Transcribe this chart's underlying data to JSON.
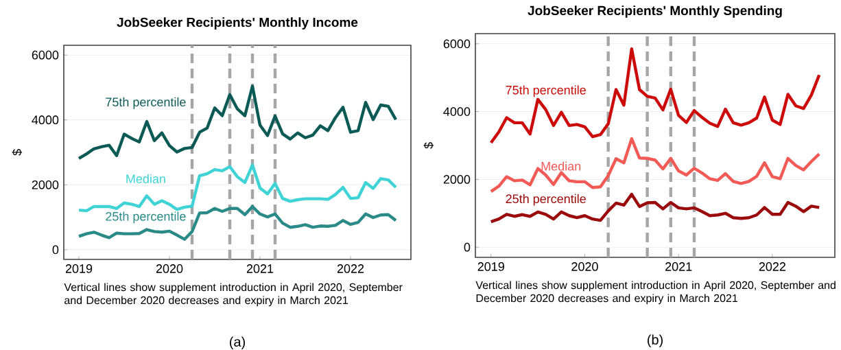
{
  "chart_data": [
    {
      "type": "line",
      "title": "JobSeeker Recipients' Monthly Income",
      "ylabel": "$",
      "x": [
        "2019-01",
        "2019-02",
        "2019-03",
        "2019-04",
        "2019-05",
        "2019-06",
        "2019-07",
        "2019-08",
        "2019-09",
        "2019-10",
        "2019-11",
        "2019-12",
        "2020-01",
        "2020-02",
        "2020-03",
        "2020-04",
        "2020-05",
        "2020-06",
        "2020-07",
        "2020-08",
        "2020-09",
        "2020-10",
        "2020-11",
        "2020-12",
        "2021-01",
        "2021-02",
        "2021-03",
        "2021-04",
        "2021-05",
        "2021-06",
        "2021-07",
        "2021-08",
        "2021-09",
        "2021-10",
        "2021-11",
        "2021-12",
        "2022-01",
        "2022-02",
        "2022-03",
        "2022-04",
        "2022-05",
        "2022-06",
        "2022-07"
      ],
      "series": [
        {
          "name": "75th percentile",
          "color": "#0b5a56",
          "values": [
            2810,
            2950,
            3110,
            3170,
            3220,
            2900,
            3560,
            3430,
            3320,
            3950,
            3360,
            3600,
            3210,
            3010,
            3120,
            3150,
            3620,
            3750,
            4370,
            4130,
            4780,
            4340,
            4130,
            5040,
            3840,
            3520,
            4120,
            3570,
            3410,
            3600,
            3450,
            3530,
            3820,
            3670,
            4070,
            4390,
            3620,
            3670,
            4540,
            4010,
            4460,
            4420,
            4010
          ]
        },
        {
          "name": "Median",
          "color": "#3fd3d6",
          "values": [
            1220,
            1200,
            1330,
            1330,
            1330,
            1270,
            1440,
            1400,
            1330,
            1660,
            1400,
            1510,
            1400,
            1240,
            1310,
            1340,
            2280,
            2340,
            2470,
            2430,
            2560,
            2250,
            2070,
            2610,
            1900,
            1720,
            2040,
            1580,
            1490,
            1540,
            1570,
            1570,
            1570,
            1550,
            1700,
            1920,
            1580,
            1600,
            2070,
            1890,
            2190,
            2150,
            1920
          ]
        },
        {
          "name": "25th percentile",
          "color": "#2a8a88",
          "values": [
            410,
            490,
            540,
            450,
            370,
            510,
            490,
            490,
            500,
            620,
            560,
            540,
            570,
            450,
            320,
            560,
            1130,
            1140,
            1270,
            1180,
            1270,
            1270,
            1080,
            1330,
            1100,
            1010,
            1100,
            820,
            690,
            720,
            770,
            690,
            730,
            720,
            750,
            900,
            780,
            840,
            1100,
            990,
            1070,
            1080,
            900
          ]
        }
      ],
      "xlim": [
        "2018-11",
        "2022-09"
      ],
      "xticks": [
        "2019",
        "2020",
        "2021",
        "2022"
      ],
      "ylim": [
        -300,
        6300
      ],
      "yticks": [
        0,
        2000,
        4000,
        6000
      ],
      "grid": "y",
      "line_style": "solid",
      "ref_lines": [
        {
          "axis": "x",
          "value": "2020-04",
          "color": "#a6a6a6",
          "line_style": "dashed"
        },
        {
          "axis": "x",
          "value": "2020-09",
          "color": "#a6a6a6",
          "line_style": "dashed"
        },
        {
          "axis": "x",
          "value": "2020-12",
          "color": "#a6a6a6",
          "line_style": "dashed"
        },
        {
          "axis": "x",
          "value": "2021-03",
          "color": "#a6a6a6",
          "line_style": "dashed"
        }
      ],
      "annotations": [
        "Vertical lines show supplement introduction in April 2020, September and December 2020 decreases and expiry in March 2021",
        "(a)"
      ]
    },
    {
      "type": "line",
      "title": "JobSeeker Recipients' Monthly Spending",
      "ylabel": "$",
      "x": [
        "2019-01",
        "2019-02",
        "2019-03",
        "2019-04",
        "2019-05",
        "2019-06",
        "2019-07",
        "2019-08",
        "2019-09",
        "2019-10",
        "2019-11",
        "2019-12",
        "2020-01",
        "2020-02",
        "2020-03",
        "2020-04",
        "2020-05",
        "2020-06",
        "2020-07",
        "2020-08",
        "2020-09",
        "2020-10",
        "2020-11",
        "2020-12",
        "2021-01",
        "2021-02",
        "2021-03",
        "2021-04",
        "2021-05",
        "2021-06",
        "2021-07",
        "2021-08",
        "2021-09",
        "2021-10",
        "2021-11",
        "2021-12",
        "2022-01",
        "2022-02",
        "2022-03",
        "2022-04",
        "2022-05",
        "2022-06",
        "2022-07"
      ],
      "series": [
        {
          "name": "75th percentile",
          "color": "#cc0a0a",
          "values": [
            3080,
            3400,
            3820,
            3670,
            3670,
            3340,
            4360,
            4060,
            3590,
            3980,
            3590,
            3620,
            3550,
            3260,
            3320,
            3640,
            4650,
            4190,
            5850,
            4650,
            4450,
            4400,
            4050,
            4660,
            3890,
            3680,
            4030,
            3830,
            3660,
            3560,
            4070,
            3670,
            3600,
            3670,
            3810,
            4430,
            3750,
            3620,
            4510,
            4170,
            4090,
            4490,
            5080
          ]
        },
        {
          "name": "Median",
          "color": "#f25a55",
          "values": [
            1640,
            1800,
            2080,
            1960,
            1980,
            1840,
            2320,
            2130,
            1850,
            2200,
            1960,
            1930,
            1930,
            1760,
            1780,
            2110,
            2610,
            2490,
            3200,
            2630,
            2620,
            2570,
            2310,
            2620,
            2250,
            2130,
            2330,
            2190,
            2020,
            1970,
            2170,
            1940,
            1880,
            1940,
            2090,
            2490,
            2080,
            2020,
            2620,
            2410,
            2280,
            2530,
            2750
          ]
        },
        {
          "name": "25th percentile",
          "color": "#9b0a0a",
          "values": [
            750,
            830,
            970,
            910,
            960,
            910,
            1040,
            970,
            830,
            1040,
            930,
            870,
            930,
            830,
            790,
            1070,
            1300,
            1240,
            1560,
            1200,
            1310,
            1320,
            1130,
            1320,
            1160,
            1130,
            1160,
            1050,
            930,
            950,
            1000,
            870,
            850,
            870,
            950,
            1170,
            970,
            970,
            1320,
            1210,
            1050,
            1210,
            1170
          ]
        }
      ],
      "xlim": [
        "2018-11",
        "2022-09"
      ],
      "xticks": [
        "2019",
        "2020",
        "2021",
        "2022"
      ],
      "ylim": [
        -300,
        6300
      ],
      "yticks": [
        0,
        2000,
        4000,
        6000
      ],
      "grid": "y",
      "line_style": "solid",
      "ref_lines": [
        {
          "axis": "x",
          "value": "2020-04",
          "color": "#a6a6a6",
          "line_style": "dashed"
        },
        {
          "axis": "x",
          "value": "2020-09",
          "color": "#a6a6a6",
          "line_style": "dashed"
        },
        {
          "axis": "x",
          "value": "2020-12",
          "color": "#a6a6a6",
          "line_style": "dashed"
        },
        {
          "axis": "x",
          "value": "2021-03",
          "color": "#a6a6a6",
          "line_style": "dashed"
        }
      ],
      "annotations": [
        "Vertical lines show supplement introduction in April 2020, September and December 2020 decreases and expiry in March 2021",
        "(b)"
      ]
    }
  ]
}
